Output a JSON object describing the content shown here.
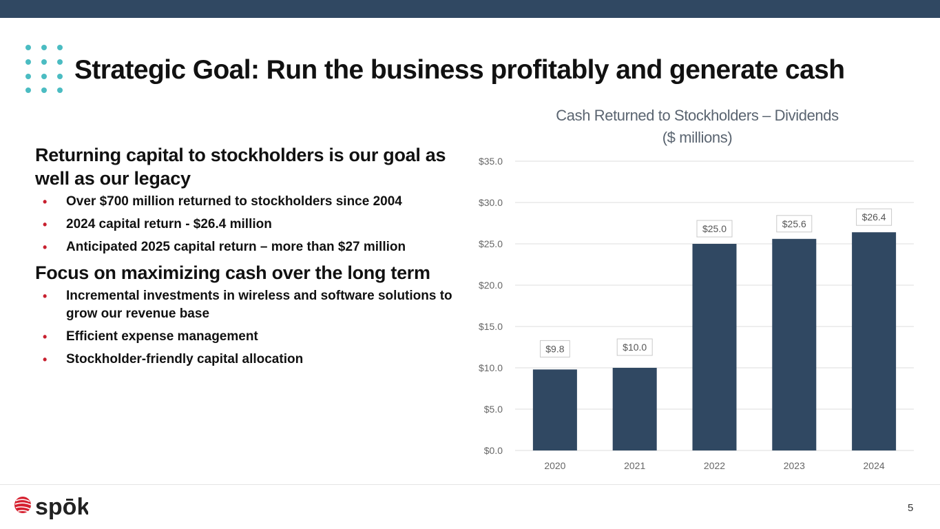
{
  "colors": {
    "header_bar": "#304862",
    "bar": "#304862",
    "accent_dots": "#4bbcc2",
    "bullet": "#c8202f"
  },
  "title": "Strategic Goal: Run the business profitably and generate cash",
  "sections": [
    {
      "heading": "Returning capital to stockholders is our goal as well as our legacy",
      "bullets": [
        "Over $700 million returned to stockholders since 2004",
        "2024 capital return - $26.4 million",
        "Anticipated 2025 capital return – more than $27 million"
      ]
    },
    {
      "heading": "Focus on maximizing cash over the long term",
      "bullets": [
        "Incremental investments in wireless and software solutions to grow our revenue base",
        "Efficient expense management",
        "Stockholder-friendly capital allocation"
      ]
    }
  ],
  "chart_data": {
    "type": "bar",
    "title": "Cash Returned to Stockholders – Dividends ($ millions)",
    "title_lines": [
      "Cash Returned to Stockholders – Dividends",
      "($ millions)"
    ],
    "categories": [
      "2020",
      "2021",
      "2022",
      "2023",
      "2024"
    ],
    "values": [
      9.8,
      10.0,
      25.0,
      25.6,
      26.4
    ],
    "data_labels": [
      "$9.8",
      "$10.0",
      "$25.0",
      "$25.6",
      "$26.4"
    ],
    "y_ticks": [
      "$0.0",
      "$5.0",
      "$10.0",
      "$15.0",
      "$20.0",
      "$25.0",
      "$30.0",
      "$35.0"
    ],
    "ylim": [
      0,
      35
    ],
    "grid": true,
    "legend": false
  },
  "footer": {
    "logo_text": "spōk",
    "page_number": "5"
  }
}
